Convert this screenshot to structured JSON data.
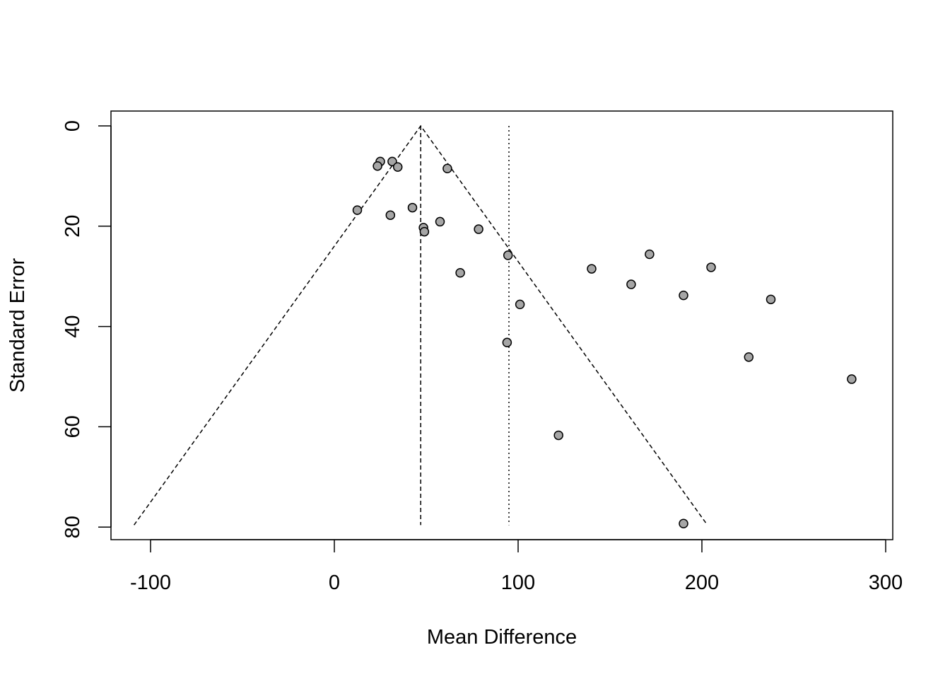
{
  "chart_data": {
    "type": "scatter",
    "subtype": "funnel-plot",
    "title": "",
    "xlabel": "Mean Difference",
    "ylabel": "Standard Error",
    "xlim": [
      -110,
      305
    ],
    "ylim": [
      83,
      -3
    ],
    "y_axis_reversed": true,
    "x_ticks": [
      -100,
      0,
      100,
      200,
      300
    ],
    "x_tick_labels": [
      "-100",
      "0",
      "100",
      "200",
      "300"
    ],
    "y_ticks": [
      0,
      20,
      40,
      60,
      80
    ],
    "y_tick_labels": [
      "0",
      "20",
      "40",
      "60",
      "80"
    ],
    "grid": false,
    "legend": "none",
    "funnel": {
      "center": 47,
      "apex_se": 0,
      "base_se": 79.6,
      "left_x_at_base": -109,
      "right_x_at_base": 203,
      "line_style": "dashed"
    },
    "reference_lines": [
      {
        "x": 47,
        "style": "dashed",
        "y_from": 0,
        "y_to": 79.6
      },
      {
        "x": 95,
        "style": "dotted",
        "y_from": 0,
        "y_to": 79.6
      }
    ],
    "point_fill": "#a6a6a6",
    "point_stroke": "#000000",
    "points": [
      {
        "x": 25,
        "y": 7.1
      },
      {
        "x": 31.5,
        "y": 7.1
      },
      {
        "x": 23.5,
        "y": 8.0
      },
      {
        "x": 34.5,
        "y": 8.2
      },
      {
        "x": 61.5,
        "y": 8.5
      },
      {
        "x": 12.5,
        "y": 16.8
      },
      {
        "x": 42.5,
        "y": 16.3
      },
      {
        "x": 30.5,
        "y": 17.8
      },
      {
        "x": 57.5,
        "y": 19.1
      },
      {
        "x": 48.5,
        "y": 20.3
      },
      {
        "x": 49,
        "y": 21.1
      },
      {
        "x": 78.5,
        "y": 20.6
      },
      {
        "x": 94.5,
        "y": 25.8
      },
      {
        "x": 68.5,
        "y": 29.3
      },
      {
        "x": 101,
        "y": 35.6
      },
      {
        "x": 94,
        "y": 43.2
      },
      {
        "x": 140,
        "y": 28.5
      },
      {
        "x": 171.5,
        "y": 25.6
      },
      {
        "x": 161.5,
        "y": 31.6
      },
      {
        "x": 205,
        "y": 28.2
      },
      {
        "x": 190,
        "y": 33.8
      },
      {
        "x": 237.5,
        "y": 34.6
      },
      {
        "x": 225.5,
        "y": 46.1
      },
      {
        "x": 281.5,
        "y": 50.5
      },
      {
        "x": 122,
        "y": 61.7
      },
      {
        "x": 190,
        "y": 79.3
      }
    ]
  }
}
